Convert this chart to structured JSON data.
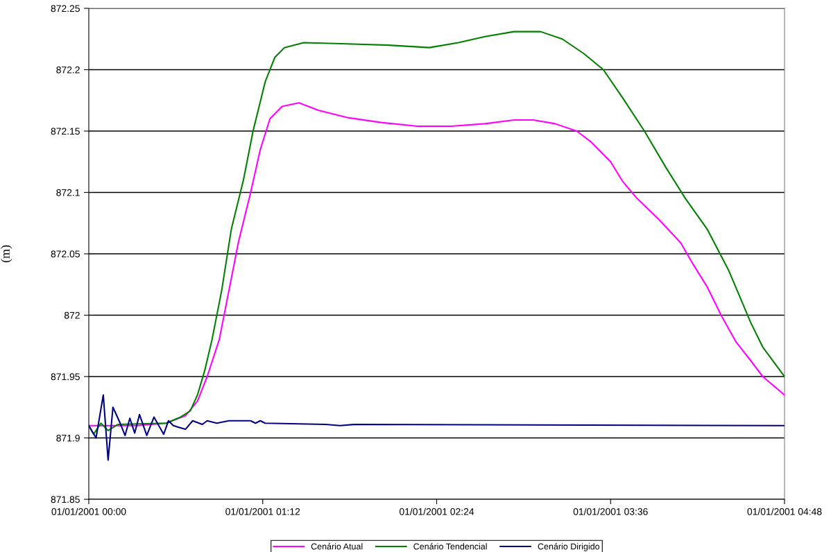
{
  "chart_data": {
    "type": "line",
    "ylabel": "(m)",
    "xlim": [
      "2001-01-01T00:00",
      "2001-01-01T04:48"
    ],
    "xticks": [
      {
        "value": "2001-01-01T00:00",
        "label": "01/01/2001 00:00"
      },
      {
        "value": "2001-01-01T01:12",
        "label": "01/01/2001 01:12"
      },
      {
        "value": "2001-01-01T02:24",
        "label": "01/01/2001 02:24"
      },
      {
        "value": "2001-01-01T03:36",
        "label": "01/01/2001 03:36"
      },
      {
        "value": "2001-01-01T04:48",
        "label": "01/01/2001 04:48"
      }
    ],
    "ylim": [
      871.85,
      872.25
    ],
    "yticks": [
      871.85,
      871.9,
      871.95,
      {
        "value": 872,
        "label": "872"
      },
      872.05,
      872.1,
      872.15,
      872.2,
      872.25
    ],
    "grid": "y",
    "legend": "bottom",
    "marker": "none",
    "line_style": "solid",
    "series": [
      {
        "name": "Cenário Atual",
        "color": "#ff00ff",
        "x": [
          "2001-01-01T00:00",
          "2001-01-01T00:20",
          "2001-01-01T00:32",
          "2001-01-01T00:40",
          "2001-01-01T00:45",
          "2001-01-01T00:49",
          "2001-01-01T00:54",
          "2001-01-01T00:58",
          "2001-01-01T01:02",
          "2001-01-01T01:07",
          "2001-01-01T01:11",
          "2001-01-01T01:15",
          "2001-01-01T01:20",
          "2001-01-01T01:27",
          "2001-01-01T01:35",
          "2001-01-01T01:47",
          "2001-01-01T02:01",
          "2001-01-01T02:16",
          "2001-01-01T02:30",
          "2001-01-01T02:44",
          "2001-01-01T02:56",
          "2001-01-01T03:04",
          "2001-01-01T03:13",
          "2001-01-01T03:22",
          "2001-01-01T03:28",
          "2001-01-01T03:36",
          "2001-01-01T03:41",
          "2001-01-01T03:47",
          "2001-01-01T03:56",
          "2001-01-01T04:05",
          "2001-01-01T04:10",
          "2001-01-01T04:16",
          "2001-01-01T04:22",
          "2001-01-01T04:28",
          "2001-01-01T04:34",
          "2001-01-01T04:39",
          "2001-01-01T04:48"
        ],
        "values": [
          871.91,
          871.91,
          871.912,
          871.918,
          871.93,
          871.95,
          871.98,
          872.02,
          872.06,
          872.1,
          872.135,
          872.16,
          872.17,
          872.173,
          872.167,
          872.161,
          872.157,
          872.154,
          872.154,
          872.156,
          872.159,
          872.159,
          872.156,
          872.15,
          872.141,
          872.125,
          872.109,
          872.095,
          872.078,
          872.059,
          872.042,
          872.023,
          871.999,
          871.978,
          871.963,
          871.95,
          871.935
        ]
      },
      {
        "name": "Cenário Tendencial",
        "color": "#008000",
        "x": [
          "2001-01-01T00:00",
          "2001-01-01T00:02",
          "2001-01-01T00:05",
          "2001-01-01T00:08",
          "2001-01-01T00:12",
          "2001-01-01T00:32",
          "2001-01-01T00:38",
          "2001-01-01T00:42",
          "2001-01-01T00:45",
          "2001-01-01T00:48",
          "2001-01-01T00:51",
          "2001-01-01T00:55",
          "2001-01-01T00:59",
          "2001-01-01T01:04",
          "2001-01-01T01:08",
          "2001-01-01T01:13",
          "2001-01-01T01:17",
          "2001-01-01T01:21",
          "2001-01-01T01:29",
          "2001-01-01T01:47",
          "2001-01-01T02:04",
          "2001-01-01T02:21",
          "2001-01-01T02:33",
          "2001-01-01T02:44",
          "2001-01-01T02:56",
          "2001-01-01T03:07",
          "2001-01-01T03:16",
          "2001-01-01T03:25",
          "2001-01-01T03:33",
          "2001-01-01T03:41",
          "2001-01-01T03:50",
          "2001-01-01T03:59",
          "2001-01-01T04:07",
          "2001-01-01T04:16",
          "2001-01-01T04:25",
          "2001-01-01T04:34",
          "2001-01-01T04:39",
          "2001-01-01T04:48"
        ],
        "values": [
          871.91,
          871.903,
          871.912,
          871.906,
          871.911,
          871.912,
          871.917,
          871.922,
          871.935,
          871.955,
          871.98,
          872.02,
          872.07,
          872.11,
          872.15,
          872.19,
          872.21,
          872.218,
          872.222,
          872.221,
          872.22,
          872.218,
          872.222,
          872.227,
          872.231,
          872.231,
          872.225,
          872.213,
          872.2,
          872.177,
          872.15,
          872.12,
          872.095,
          872.07,
          872.036,
          871.994,
          871.974,
          871.95
        ]
      },
      {
        "name": "Cenário Dirigido",
        "color": "#000080",
        "x": [
          "2001-01-01T00:00",
          "2001-01-01T00:03",
          "2001-01-01T00:06",
          "2001-01-01T00:08",
          "2001-01-01T00:10",
          "2001-01-01T00:13",
          "2001-01-01T00:15",
          "2001-01-01T00:17",
          "2001-01-01T00:19",
          "2001-01-01T00:21",
          "2001-01-01T00:24",
          "2001-01-01T00:27",
          "2001-01-01T00:31",
          "2001-01-01T00:33",
          "2001-01-01T00:35",
          "2001-01-01T00:40",
          "2001-01-01T00:43",
          "2001-01-01T00:47",
          "2001-01-01T00:49",
          "2001-01-01T00:53",
          "2001-01-01T00:58",
          "2001-01-01T01:07",
          "2001-01-01T01:09",
          "2001-01-01T01:11",
          "2001-01-01T01:13",
          "2001-01-01T01:38",
          "2001-01-01T01:44",
          "2001-01-01T01:50",
          "2001-01-01T04:48"
        ],
        "values": [
          871.91,
          871.9,
          871.935,
          871.882,
          871.925,
          871.912,
          871.902,
          871.916,
          871.904,
          871.919,
          871.902,
          871.917,
          871.903,
          871.914,
          871.91,
          871.907,
          871.914,
          871.911,
          871.914,
          871.912,
          871.914,
          871.914,
          871.912,
          871.914,
          871.912,
          871.911,
          871.91,
          871.911,
          871.91
        ]
      }
    ]
  }
}
